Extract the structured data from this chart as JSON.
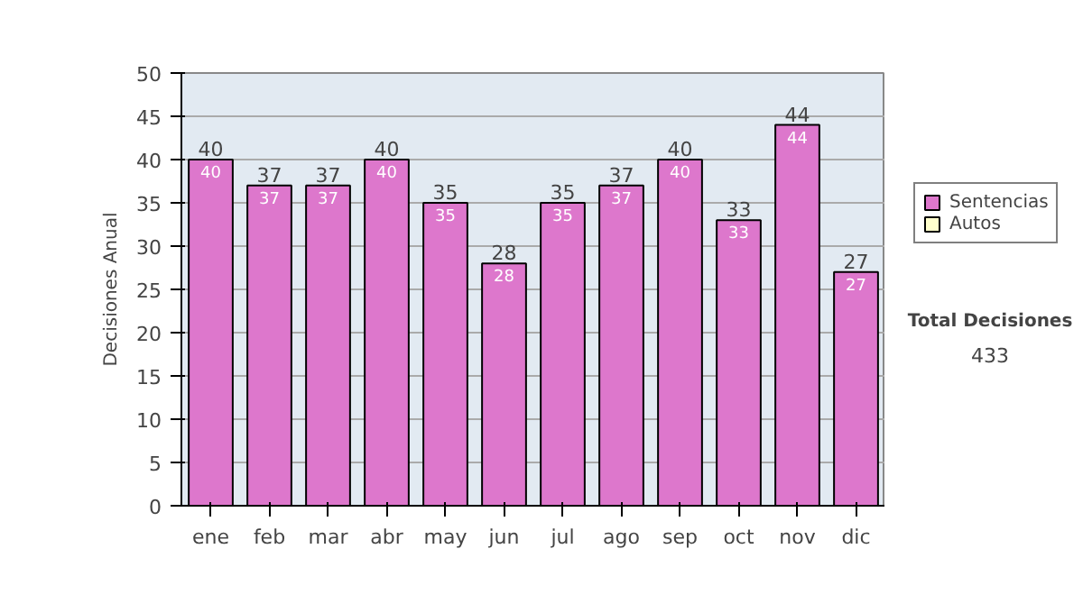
{
  "chart_data": {
    "type": "bar",
    "stacked": true,
    "ylabel": "Decisiones Anual",
    "categories": [
      "ene",
      "feb",
      "mar",
      "abr",
      "may",
      "jun",
      "jul",
      "ago",
      "sep",
      "oct",
      "nov",
      "dic"
    ],
    "series": [
      {
        "name": "Sentencias",
        "color": "#dd77cc",
        "values": [
          40,
          37,
          37,
          40,
          35,
          28,
          35,
          37,
          40,
          33,
          44,
          27
        ]
      },
      {
        "name": "Autos",
        "color": "#ffffcc",
        "values": [
          null,
          null,
          null,
          null,
          null,
          null,
          null,
          null,
          null,
          null,
          null,
          null
        ]
      }
    ],
    "totals": [
      "40",
      "37",
      "37",
      "40",
      "35",
      "28",
      "35",
      "37",
      "40",
      "33",
      "44",
      "27"
    ],
    "data_labels": true,
    "ylim": [
      0,
      50
    ],
    "yticks": [
      0,
      5,
      10,
      15,
      20,
      25,
      30,
      35,
      40,
      45,
      50
    ],
    "grid": "y",
    "legend": "right",
    "annotations": [
      "Total Decisiones",
      "433"
    ]
  }
}
